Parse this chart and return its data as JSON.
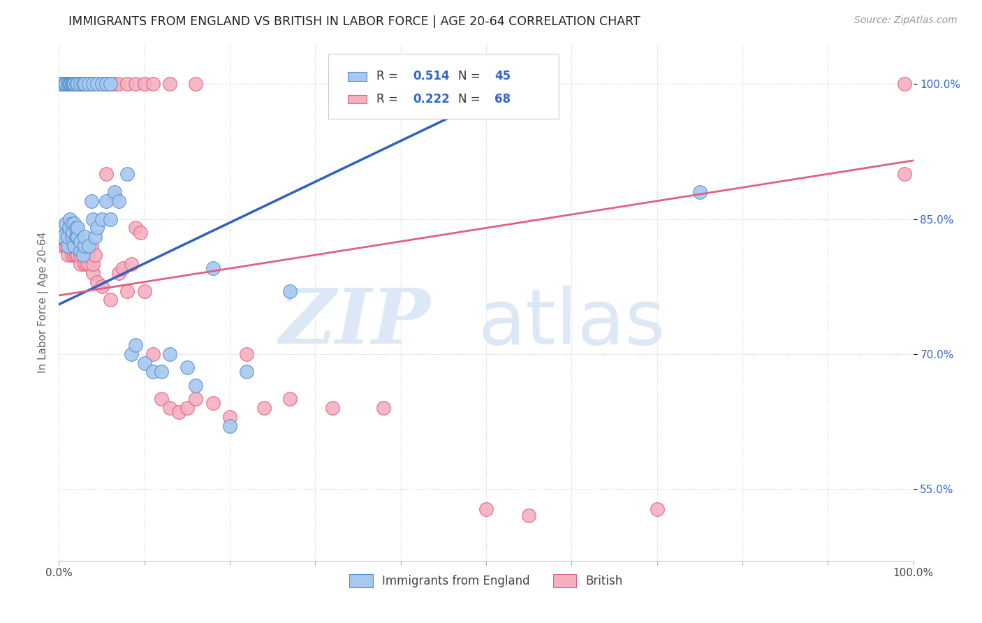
{
  "title": "IMMIGRANTS FROM ENGLAND VS BRITISH IN LABOR FORCE | AGE 20-64 CORRELATION CHART",
  "source": "Source: ZipAtlas.com",
  "ylabel": "In Labor Force | Age 20-64",
  "xlim": [
    0.0,
    1.0
  ],
  "ylim": [
    0.47,
    1.045
  ],
  "xticks": [
    0.0,
    0.1,
    0.2,
    0.3,
    0.4,
    0.5,
    0.6,
    0.7,
    0.8,
    0.9,
    1.0
  ],
  "xtick_labels": [
    "0.0%",
    "",
    "",
    "",
    "",
    "",
    "",
    "",
    "",
    "",
    "100.0%"
  ],
  "ytick_labels": [
    "55.0%",
    "70.0%",
    "85.0%",
    "100.0%"
  ],
  "yticks": [
    0.55,
    0.7,
    0.85,
    1.0
  ],
  "r_england": 0.514,
  "n_england": 45,
  "r_british": 0.222,
  "n_british": 68,
  "england_color": "#a8c8f0",
  "british_color": "#f5b0c0",
  "england_edge_color": "#5090d0",
  "british_edge_color": "#e06080",
  "england_line_color": "#3060c0",
  "british_line_color": "#e06080",
  "england_trend_x": [
    0.0,
    0.55
  ],
  "england_trend_y": [
    0.755,
    1.005
  ],
  "british_trend_x": [
    0.0,
    1.0
  ],
  "british_trend_y": [
    0.765,
    0.915
  ],
  "scatter_england_x": [
    0.005,
    0.005,
    0.008,
    0.01,
    0.01,
    0.012,
    0.013,
    0.015,
    0.015,
    0.016,
    0.018,
    0.018,
    0.02,
    0.02,
    0.022,
    0.022,
    0.025,
    0.025,
    0.028,
    0.03,
    0.03,
    0.035,
    0.038,
    0.04,
    0.042,
    0.045,
    0.05,
    0.055,
    0.06,
    0.065,
    0.07,
    0.08,
    0.085,
    0.09,
    0.1,
    0.11,
    0.12,
    0.13,
    0.15,
    0.16,
    0.18,
    0.2,
    0.22,
    0.27,
    0.75
  ],
  "scatter_england_y": [
    0.84,
    0.83,
    0.845,
    0.82,
    0.83,
    0.84,
    0.85,
    0.83,
    0.845,
    0.835,
    0.82,
    0.845,
    0.83,
    0.84,
    0.83,
    0.84,
    0.815,
    0.825,
    0.81,
    0.82,
    0.83,
    0.82,
    0.87,
    0.85,
    0.83,
    0.84,
    0.85,
    0.87,
    0.85,
    0.88,
    0.87,
    0.9,
    0.7,
    0.71,
    0.69,
    0.68,
    0.68,
    0.7,
    0.685,
    0.665,
    0.795,
    0.62,
    0.68,
    0.77,
    0.88
  ],
  "scatter_british_x": [
    0.003,
    0.004,
    0.005,
    0.006,
    0.007,
    0.008,
    0.009,
    0.01,
    0.01,
    0.01,
    0.012,
    0.013,
    0.015,
    0.015,
    0.015,
    0.016,
    0.018,
    0.018,
    0.018,
    0.02,
    0.02,
    0.02,
    0.022,
    0.022,
    0.023,
    0.025,
    0.025,
    0.028,
    0.03,
    0.03,
    0.03,
    0.032,
    0.033,
    0.035,
    0.035,
    0.038,
    0.04,
    0.04,
    0.042,
    0.045,
    0.05,
    0.055,
    0.06,
    0.065,
    0.07,
    0.075,
    0.08,
    0.085,
    0.09,
    0.095,
    0.1,
    0.11,
    0.12,
    0.13,
    0.14,
    0.15,
    0.16,
    0.18,
    0.2,
    0.22,
    0.24,
    0.27,
    0.32,
    0.38,
    0.5,
    0.55,
    0.7,
    0.99
  ],
  "scatter_british_y": [
    0.83,
    0.825,
    0.82,
    0.83,
    0.835,
    0.82,
    0.825,
    0.81,
    0.82,
    0.83,
    0.82,
    0.83,
    0.81,
    0.82,
    0.83,
    0.82,
    0.81,
    0.82,
    0.83,
    0.81,
    0.82,
    0.83,
    0.81,
    0.82,
    0.825,
    0.8,
    0.81,
    0.82,
    0.8,
    0.81,
    0.82,
    0.8,
    0.81,
    0.8,
    0.81,
    0.82,
    0.79,
    0.8,
    0.81,
    0.78,
    0.775,
    0.9,
    0.76,
    0.875,
    0.79,
    0.795,
    0.77,
    0.8,
    0.84,
    0.835,
    0.77,
    0.7,
    0.65,
    0.64,
    0.635,
    0.64,
    0.65,
    0.645,
    0.63,
    0.7,
    0.64,
    0.65,
    0.64,
    0.64,
    0.527,
    0.52,
    0.527,
    0.9
  ],
  "top_england_x": [
    0.003,
    0.005,
    0.007,
    0.008,
    0.01,
    0.01,
    0.012,
    0.013,
    0.014,
    0.015,
    0.016,
    0.017,
    0.018,
    0.02,
    0.022,
    0.025,
    0.028,
    0.03,
    0.035,
    0.04,
    0.045,
    0.05,
    0.055,
    0.06
  ],
  "top_england_y": [
    1.0,
    1.0,
    1.0,
    1.0,
    1.0,
    1.0,
    1.0,
    1.0,
    1.0,
    1.0,
    1.0,
    1.0,
    1.0,
    1.0,
    1.0,
    1.0,
    1.0,
    1.0,
    1.0,
    1.0,
    1.0,
    1.0,
    1.0,
    1.0
  ],
  "top_british_x": [
    0.003,
    0.005,
    0.007,
    0.008,
    0.01,
    0.012,
    0.013,
    0.015,
    0.016,
    0.018,
    0.02,
    0.022,
    0.025,
    0.028,
    0.03,
    0.033,
    0.035,
    0.038,
    0.04,
    0.045,
    0.05,
    0.055,
    0.06,
    0.065,
    0.07,
    0.08,
    0.09,
    0.1,
    0.11,
    0.13,
    0.16,
    0.99
  ],
  "top_british_y": [
    1.0,
    1.0,
    1.0,
    1.0,
    1.0,
    1.0,
    1.0,
    1.0,
    1.0,
    1.0,
    1.0,
    1.0,
    1.0,
    1.0,
    1.0,
    1.0,
    1.0,
    1.0,
    1.0,
    1.0,
    1.0,
    1.0,
    1.0,
    1.0,
    1.0,
    1.0,
    1.0,
    1.0,
    1.0,
    1.0,
    1.0,
    1.0
  ]
}
